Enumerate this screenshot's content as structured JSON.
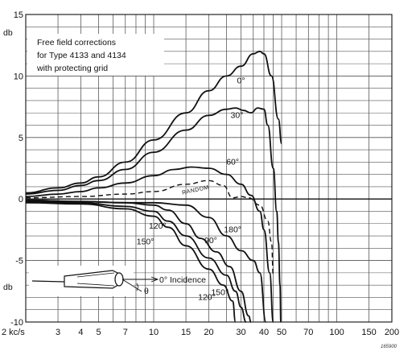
{
  "chart_data": {
    "type": "line",
    "title_lines": [
      "Free field corrections",
      "for Type 4133 and 4134",
      "with protecting grid"
    ],
    "ylabel": "db",
    "xlabel": "kc/s",
    "x_scale": "log",
    "xlim": [
      2,
      200
    ],
    "ylim": [
      -10,
      15
    ],
    "grid": true,
    "x_tick_labels": [
      {
        "x": 2,
        "label": "2 kc/s"
      },
      {
        "x": 3,
        "label": "3"
      },
      {
        "x": 4,
        "label": "4"
      },
      {
        "x": 5,
        "label": "5"
      },
      {
        "x": 7,
        "label": "7"
      },
      {
        "x": 10,
        "label": "10"
      },
      {
        "x": 15,
        "label": "15"
      },
      {
        "x": 20,
        "label": "20"
      },
      {
        "x": 30,
        "label": "30"
      },
      {
        "x": 40,
        "label": "40"
      },
      {
        "x": 50,
        "label": "50"
      },
      {
        "x": 70,
        "label": "70"
      },
      {
        "x": 100,
        "label": "100"
      },
      {
        "x": 150,
        "label": "150"
      },
      {
        "x": 200,
        "label": "200"
      }
    ],
    "y_tick_labels": [
      {
        "y": 15,
        "label": "15"
      },
      {
        "y": 10,
        "label": "10"
      },
      {
        "y": 5,
        "label": "5"
      },
      {
        "y": 0,
        "label": "0"
      },
      {
        "y": -5,
        "label": "-5"
      },
      {
        "y": -10,
        "label": "-10"
      }
    ],
    "series": [
      {
        "name": "0°",
        "dashed": false,
        "points": [
          [
            2,
            0.5
          ],
          [
            3,
            0.9
          ],
          [
            4,
            1.3
          ],
          [
            5,
            1.8
          ],
          [
            7,
            3.0
          ],
          [
            10,
            4.8
          ],
          [
            15,
            7.0
          ],
          [
            20,
            8.8
          ],
          [
            25,
            10.0
          ],
          [
            30,
            10.8
          ],
          [
            35,
            11.8
          ],
          [
            38,
            12.0
          ],
          [
            40,
            11.8
          ],
          [
            44,
            10.0
          ],
          [
            48,
            6.5
          ],
          [
            50,
            4.5
          ]
        ]
      },
      {
        "name": "30°",
        "dashed": false,
        "points": [
          [
            2,
            0.4
          ],
          [
            3,
            0.7
          ],
          [
            4,
            1.1
          ],
          [
            5,
            1.5
          ],
          [
            7,
            2.4
          ],
          [
            10,
            3.8
          ],
          [
            15,
            5.6
          ],
          [
            20,
            6.8
          ],
          [
            25,
            7.3
          ],
          [
            28,
            7.4
          ],
          [
            31,
            7.2
          ],
          [
            34,
            7.0
          ],
          [
            37,
            7.4
          ],
          [
            40,
            7.3
          ],
          [
            42,
            6.0
          ],
          [
            45,
            2.5
          ],
          [
            47,
            -1.0
          ],
          [
            48,
            -3.5
          ],
          [
            49,
            -7.0
          ],
          [
            49.5,
            -10
          ]
        ]
      },
      {
        "name": "60°",
        "dashed": false,
        "points": [
          [
            2,
            0.2
          ],
          [
            3,
            0.4
          ],
          [
            4,
            0.6
          ],
          [
            5,
            0.9
          ],
          [
            7,
            1.3
          ],
          [
            10,
            1.9
          ],
          [
            13,
            2.4
          ],
          [
            16,
            2.6
          ],
          [
            20,
            2.5
          ],
          [
            25,
            2.0
          ],
          [
            30,
            1.2
          ],
          [
            34,
            0.3
          ],
          [
            38,
            -1.0
          ],
          [
            40,
            -2.5
          ],
          [
            43,
            -6.0
          ],
          [
            45,
            -10
          ]
        ]
      },
      {
        "name": "RANDOM",
        "dashed": true,
        "points": [
          [
            2,
            0.1
          ],
          [
            4,
            0.2
          ],
          [
            7,
            0.4
          ],
          [
            10,
            0.6
          ],
          [
            15,
            1.2
          ],
          [
            20,
            1.5
          ],
          [
            24,
            1.1
          ],
          [
            27,
            0.1
          ],
          [
            30,
            0.2
          ],
          [
            33,
            0.1
          ],
          [
            38,
            -0.5
          ],
          [
            42,
            -1.8
          ],
          [
            44,
            -3.5
          ],
          [
            45,
            -6.2
          ]
        ]
      },
      {
        "name": "90°",
        "dashed": false,
        "points": [
          [
            2,
            -0.1
          ],
          [
            4,
            -0.2
          ],
          [
            7,
            -0.3
          ],
          [
            10,
            -0.5
          ],
          [
            12,
            -0.9
          ],
          [
            15,
            -2.0
          ],
          [
            18,
            -3.2
          ],
          [
            22,
            -4.3
          ],
          [
            26,
            -5.5
          ],
          [
            30,
            -7.5
          ],
          [
            33,
            -9.5
          ],
          [
            34,
            -10
          ]
        ]
      },
      {
        "name": "120°",
        "dashed": false,
        "points": [
          [
            2,
            -0.2
          ],
          [
            4,
            -0.3
          ],
          [
            7,
            -0.6
          ],
          [
            10,
            -1.0
          ],
          [
            12,
            -1.8
          ],
          [
            15,
            -3.0
          ],
          [
            20,
            -4.8
          ],
          [
            25,
            -6.2
          ],
          [
            28,
            -7.5
          ],
          [
            30,
            -8.8
          ],
          [
            32,
            -10
          ]
        ]
      },
      {
        "name": "150°",
        "dashed": false,
        "points": [
          [
            2,
            -0.3
          ],
          [
            4,
            -0.4
          ],
          [
            7,
            -0.8
          ],
          [
            10,
            -1.4
          ],
          [
            12,
            -2.3
          ],
          [
            15,
            -3.8
          ],
          [
            20,
            -5.7
          ],
          [
            24,
            -7.0
          ],
          [
            27,
            -8.3
          ],
          [
            28,
            -10
          ]
        ]
      },
      {
        "name": "180°",
        "dashed": false,
        "points": [
          [
            2,
            -0.1
          ],
          [
            4,
            -0.2
          ],
          [
            7,
            -0.3
          ],
          [
            10,
            -0.3
          ],
          [
            15,
            -0.5
          ],
          [
            20,
            -1.5
          ],
          [
            25,
            -3.0
          ],
          [
            30,
            -4.2
          ],
          [
            35,
            -5.0
          ],
          [
            38,
            -6.0
          ],
          [
            41,
            -10
          ]
        ]
      }
    ],
    "curve_labels": [
      {
        "text": "0°",
        "x": 30,
        "y": 9.4
      },
      {
        "text": "30°",
        "x": 28.5,
        "y": 6.6
      },
      {
        "text": "60°",
        "x": 27,
        "y": 2.8
      },
      {
        "text": "RANDOM",
        "x": 17,
        "y": 0.6
      },
      {
        "text": "120°",
        "x": 10.5,
        "y": -2.4
      },
      {
        "text": "150°",
        "x": 9,
        "y": -3.7
      },
      {
        "text": "90°",
        "x": 20.5,
        "y": -3.6
      },
      {
        "text": "180°",
        "x": 27,
        "y": -2.7
      },
      {
        "text": "120°",
        "x": 19.5,
        "y": -8.2
      },
      {
        "text": "150°",
        "x": 23,
        "y": -7.8
      }
    ],
    "inset_label": "0° Incidence",
    "inset_symbol": "θ",
    "figure_id": "165900"
  }
}
